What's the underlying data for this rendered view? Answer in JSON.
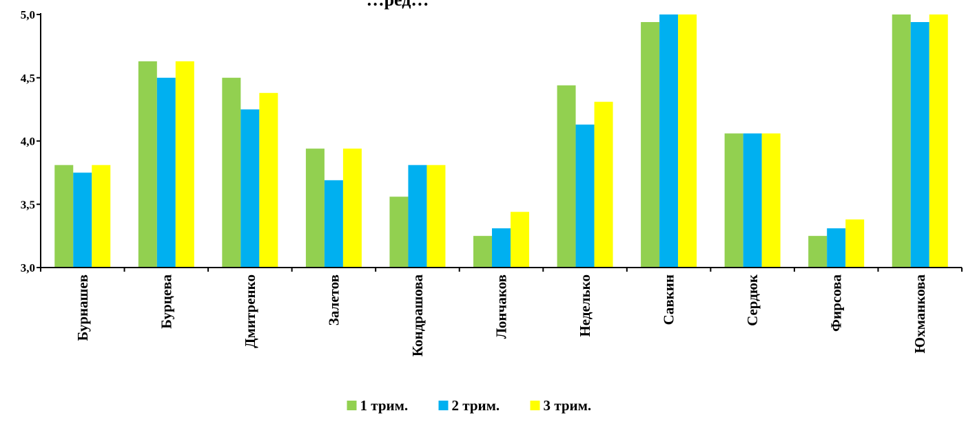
{
  "chart_data": {
    "type": "bar",
    "title": "…ред…",
    "xlabel": "",
    "ylabel": "",
    "categories": [
      "Бурнашев",
      "Бурцева",
      "Дмитренко",
      "Залетов",
      "Кондрашова",
      "Лончаков",
      "Неделько",
      "Савкин",
      "Сердюк",
      "Фирсова",
      "Юхманкова"
    ],
    "series": [
      {
        "name": "1 трим.",
        "color": "#92d050",
        "values": [
          3.81,
          4.63,
          4.5,
          3.94,
          3.56,
          3.25,
          4.44,
          4.94,
          4.06,
          3.25,
          5.0
        ]
      },
      {
        "name": "2 трим.",
        "color": "#00b0f0",
        "values": [
          3.75,
          4.5,
          4.25,
          3.69,
          3.81,
          3.31,
          4.13,
          5.0,
          4.06,
          3.31,
          4.94
        ]
      },
      {
        "name": "3 трим.",
        "color": "#ffff00",
        "values": [
          3.81,
          4.63,
          4.38,
          3.94,
          3.81,
          3.44,
          4.31,
          5.0,
          4.06,
          3.38,
          5.0
        ]
      }
    ],
    "ylim": [
      3.0,
      5.0
    ],
    "yticks": [
      "3,0",
      "3,5",
      "4,0",
      "4,5",
      "5,0"
    ],
    "grid": false,
    "legend_position": "bottom"
  }
}
